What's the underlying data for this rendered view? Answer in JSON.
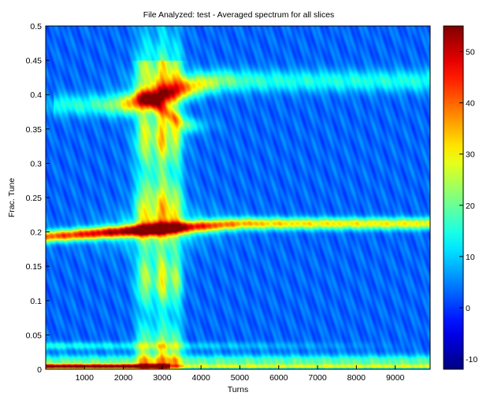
{
  "chart_data": {
    "type": "heatmap",
    "title": "File Analyzed: test - Averaged spectrum for all slices",
    "xlabel": "Turns",
    "ylabel": "Frac. Tune",
    "xlim": [
      0,
      9900
    ],
    "ylim": [
      0,
      0.5
    ],
    "x_ticks": [
      1000,
      2000,
      3000,
      4000,
      5000,
      6000,
      7000,
      8000,
      9000
    ],
    "y_ticks": [
      0,
      0.05,
      0.1,
      0.15,
      0.2,
      0.25,
      0.3,
      0.35,
      0.4,
      0.45,
      0.5
    ],
    "y_tick_labels": [
      "0",
      "0.05",
      "0.1",
      "0.15",
      "0.2",
      "0.25",
      "0.3",
      "0.35",
      "0.4",
      "0.45",
      "0.5"
    ],
    "colorbar": {
      "range": [
        -12,
        55
      ],
      "ticks": [
        -10,
        0,
        10,
        20,
        30,
        40,
        50
      ],
      "colormap": "jet"
    },
    "background_level": 3,
    "features": [
      {
        "description": "main tune line",
        "kind": "line",
        "y_start": 0.193,
        "y_end": 0.212,
        "x_peak": 2900,
        "peak_value": 52,
        "tail_value": 30
      },
      {
        "description": "upper tune line",
        "kind": "line",
        "y_start": 0.385,
        "y_end": 0.42,
        "x_peak": 2850,
        "peak_value": 38,
        "tail_value": 12
      },
      {
        "description": "upper branch",
        "kind": "branch",
        "y_start": 0.395,
        "y_end": 0.355,
        "x_start": 2600,
        "x_end": 3600,
        "value": 20
      },
      {
        "description": "vertical bands",
        "kind": "band",
        "x_centers": [
          2550,
          3000,
          3350
        ],
        "value": 22
      },
      {
        "description": "low-tune base line",
        "kind": "line",
        "y": 0.004,
        "value": 52
      }
    ]
  }
}
